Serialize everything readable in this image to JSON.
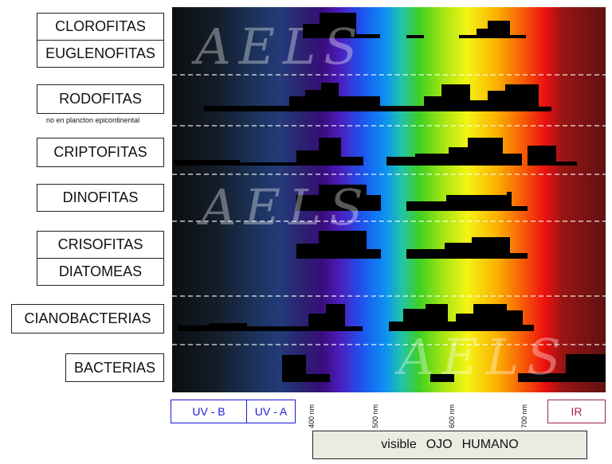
{
  "groups": [
    {
      "label": "CLOROFITAS"
    },
    {
      "label": "EUGLENOFITAS"
    },
    {
      "label": "RODOFITAS",
      "note": "no en plancton epicontinental"
    },
    {
      "label": "CRIPTOFITAS"
    },
    {
      "label": "DINOFITAS"
    },
    {
      "label": "CRISOFITAS"
    },
    {
      "label": "DIATOMEAS"
    },
    {
      "label": "CIANOBACTERIAS"
    },
    {
      "label": "BACTERIAS"
    }
  ],
  "bands": {
    "uvb": "UV - B",
    "uva": "UV - A",
    "ir": "IR",
    "uv_color": "#1a1ad8",
    "ir_color": "#a0204a"
  },
  "wavelength_ticks": [
    "400 nm",
    "500 nm",
    "600 nm",
    "700 nm"
  ],
  "visible_box": {
    "word1": "visible",
    "word2": "OJO",
    "word3": "HUMANO"
  },
  "watermark": "AELS"
}
